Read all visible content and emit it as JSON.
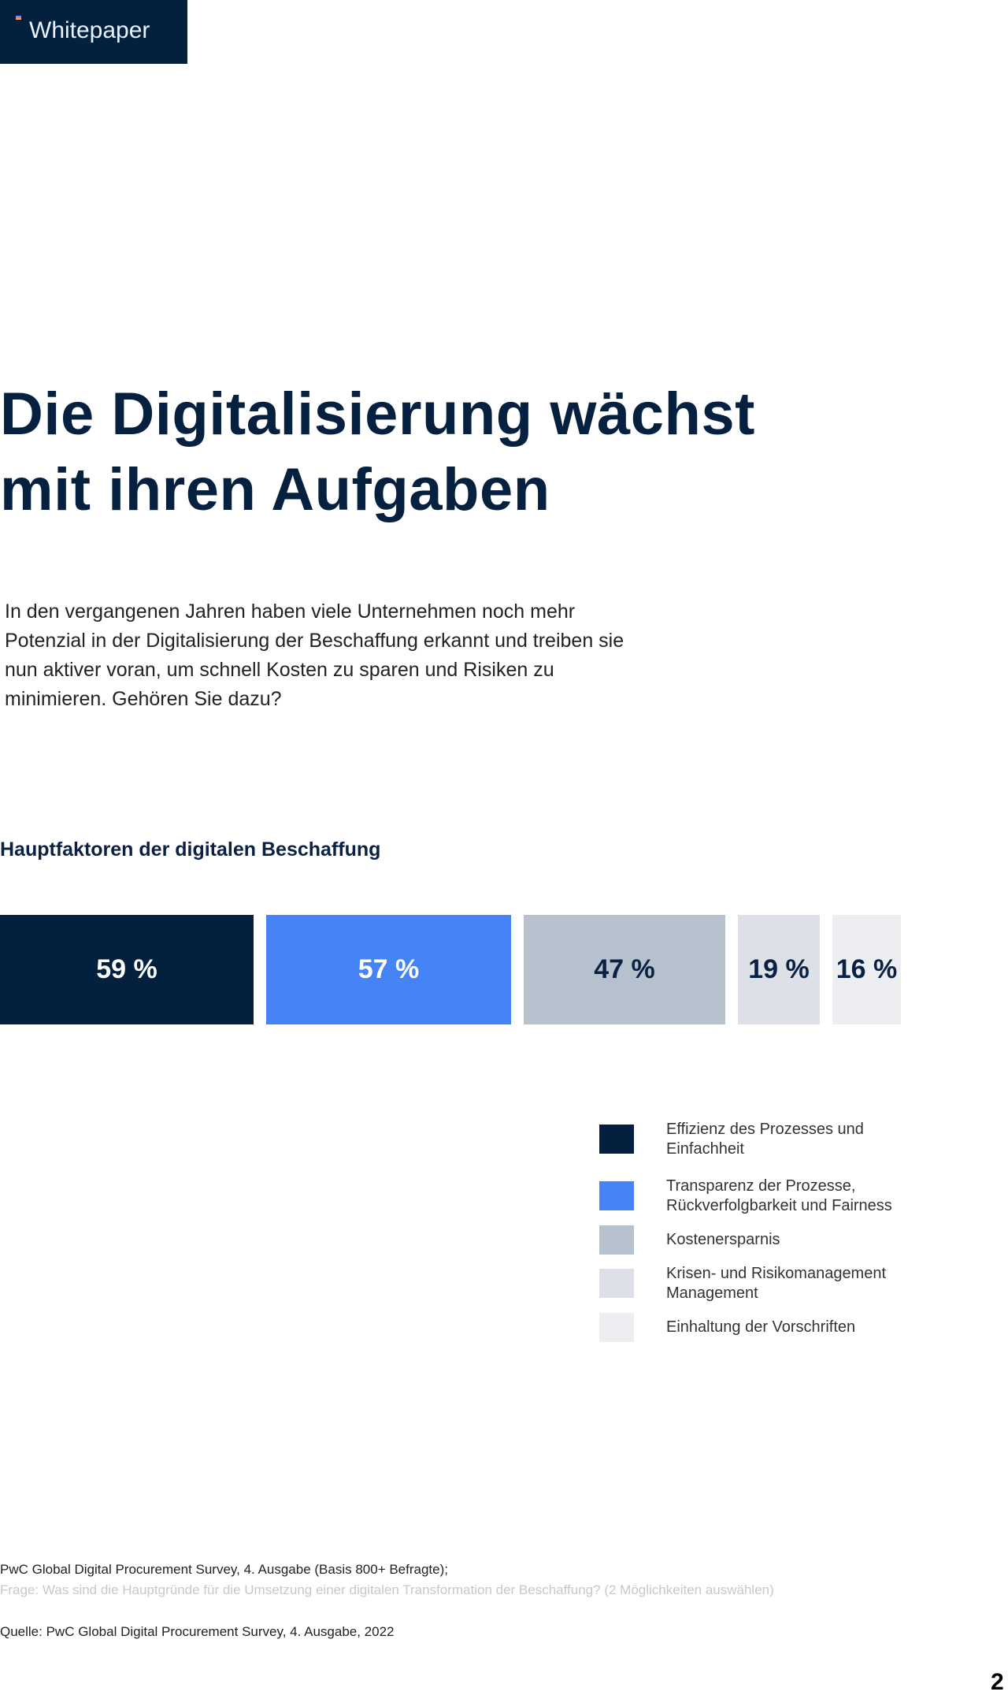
{
  "header": {
    "badge_label": "Whitepaper"
  },
  "title_lines": [
    "Die Digitalisierung wächst",
    "mit ihren Aufgaben"
  ],
  "intro": "In den vergangenen Jahren haben viele Unternehmen noch mehr Potenzial in der Digitalisierung der Beschaffung erkannt und treiben sie nun aktiver voran, um schnell Kosten zu sparen und Risiken zu minimieren. Gehören Sie dazu?",
  "chart_data": {
    "type": "bar",
    "title": "Hauptfaktoren der digitalen Beschaffung",
    "categories": [
      "Effizienz des Prozesses und Einfachheit",
      "Transparenz der Prozesse, Rückverfolgbarkeit und Fairness",
      "Kostenersparnis",
      "Krisen- und Risikomanagement Management",
      "Einhaltung der Vorschriften"
    ],
    "values": [
      59,
      57,
      47,
      19,
      16
    ],
    "labels": [
      "59 %",
      "57 %",
      "47 %",
      "19 %",
      "16 %"
    ],
    "colors": [
      "#04203f",
      "#4583f7",
      "#b5c1cc",
      "#dde1e7",
      "#eceef1"
    ],
    "text_colors": [
      "#ffffff",
      "#ffffff",
      "#0a2143",
      "#0a2143",
      "#0a2143"
    ],
    "legend_position": "bottom-right",
    "orientation": "horizontal-stacked-blocks"
  },
  "footer": {
    "basis": "PwC Global Digital Procurement Survey, 4. Ausgabe (Basis 800+ Befragte);",
    "question": "Frage: Was sind die Hauptgründe für die Umsetzung einer digitalen Transformation der Beschaffung? (2 Möglichkeiten auswählen)",
    "source": "Quelle: PwC Global Digital Procurement Survey, 4. Ausgabe, 2022"
  },
  "page_number": "2"
}
